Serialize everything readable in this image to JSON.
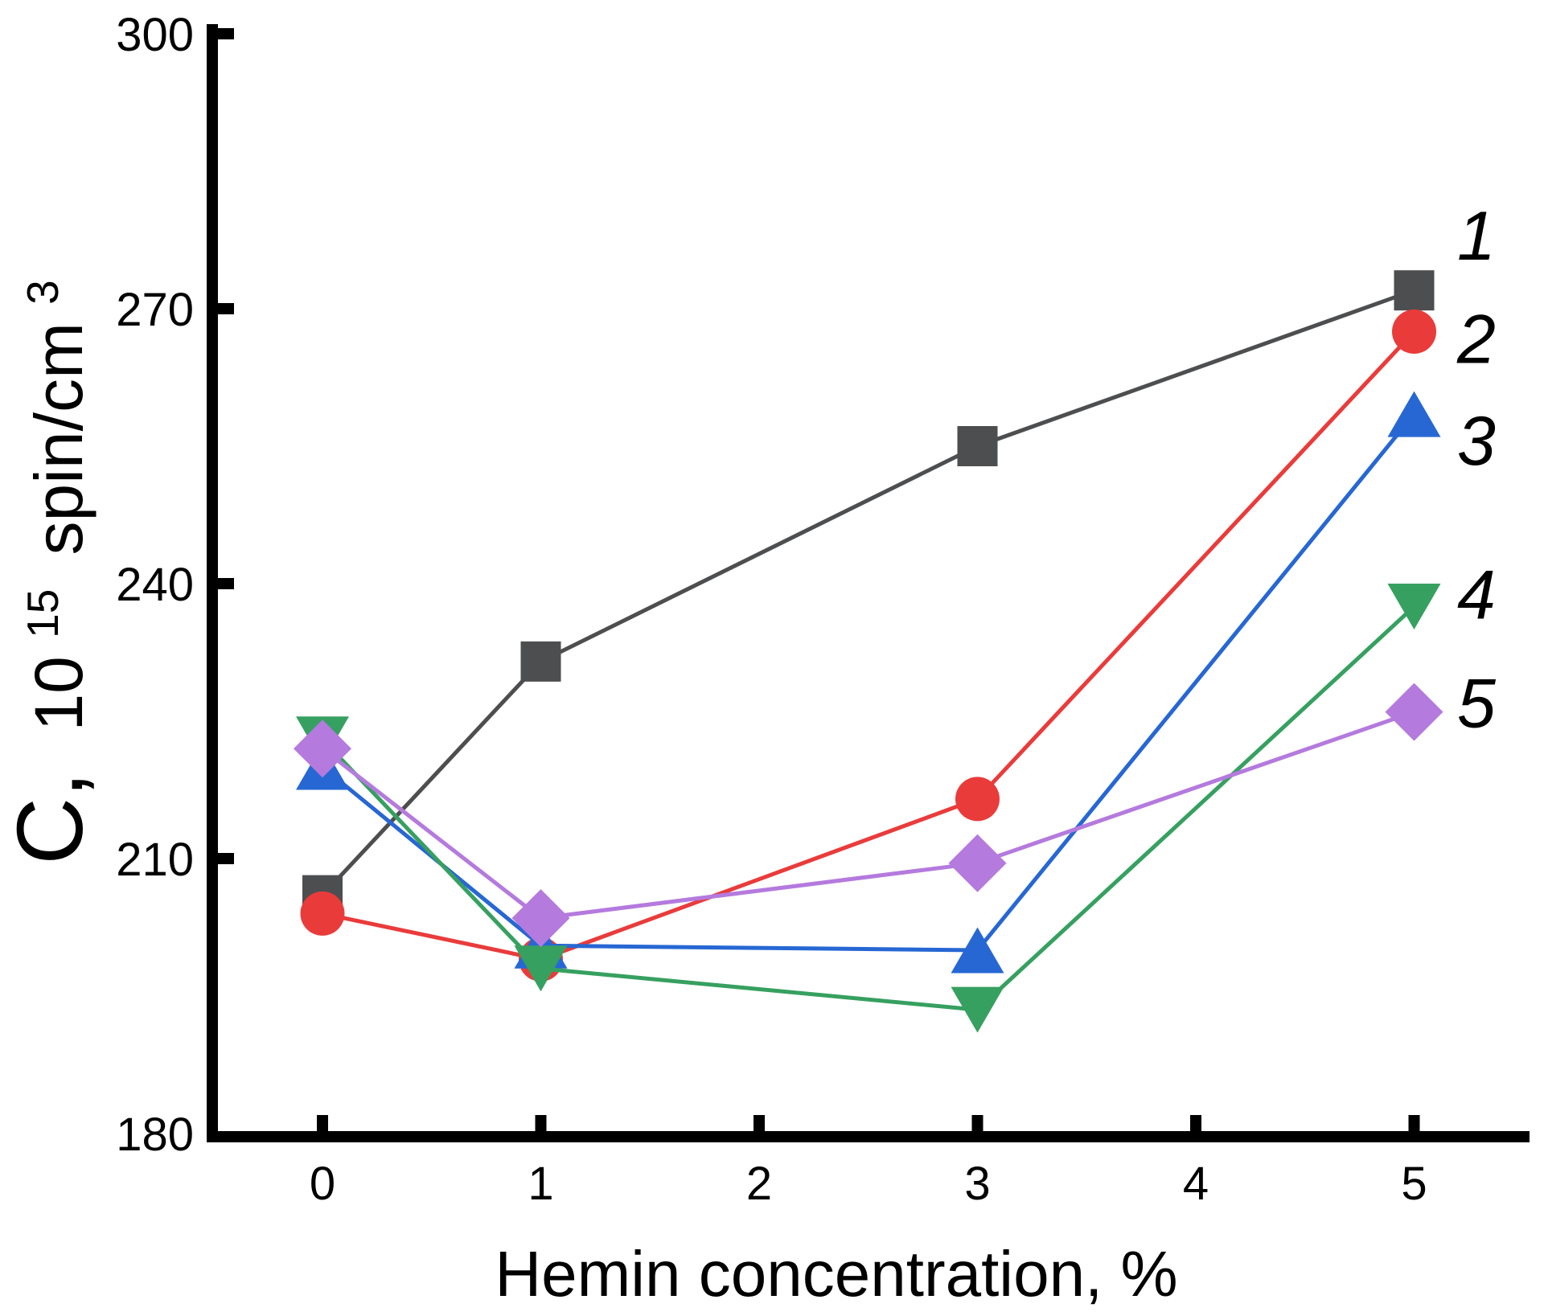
{
  "chart_data": {
    "type": "line",
    "x": [
      0,
      1,
      3,
      5
    ],
    "xlabel": "Hemin concentration, %",
    "ylabel": {
      "plain": "C, 10^15 spin/cm^3",
      "c_prefix": "C,",
      "base": "10",
      "superscript": "15",
      "unit": "spin/cm",
      "unit_superscript": "3"
    },
    "x_tick_labels": [
      "0",
      "1",
      "2",
      "3",
      "4",
      "5"
    ],
    "y_tick_labels": [
      "180",
      "210",
      "240",
      "270",
      "300"
    ],
    "x_tick_values": [
      0,
      1,
      2,
      3,
      4,
      5
    ],
    "y_tick_values": [
      180,
      210,
      240,
      270,
      300
    ],
    "xlim": [
      -0.5,
      5.53
    ],
    "ylim": [
      180,
      300
    ],
    "grid": false,
    "legend_position": "right-of-last-point",
    "background_color": "#ffffff",
    "axis_color": "#000000",
    "series": [
      {
        "name": "1",
        "marker": "square",
        "color": "#4d4e50",
        "values": [
          206,
          231.5,
          255,
          272
        ]
      },
      {
        "name": "2",
        "marker": "circle",
        "color": "#ea3b3b",
        "values": [
          204,
          199,
          216.5,
          267.5
        ]
      },
      {
        "name": "3",
        "marker": "triangle-up",
        "color": "#2767d4",
        "values": [
          220,
          200.5,
          200,
          258.5
        ]
      },
      {
        "name": "4",
        "marker": "triangle-down",
        "color": "#36a060",
        "values": [
          223,
          198,
          193.5,
          237.5
        ]
      },
      {
        "name": "5",
        "marker": "diamond",
        "color": "#b47ade",
        "values": [
          222,
          203.5,
          209.5,
          226
        ]
      }
    ]
  }
}
